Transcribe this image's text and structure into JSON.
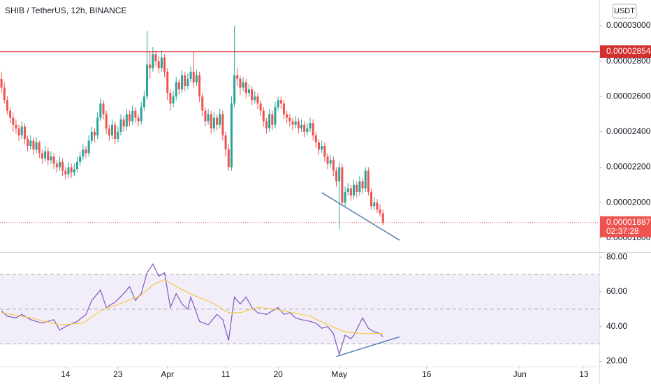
{
  "chart_data": [
    {
      "type": "candlestick",
      "title": "SHIB / TetherUS, 12h, BINANCE",
      "currency": "USDT",
      "xlim": [
        -0.5,
        205.3
      ],
      "ylim": [
        1.724e-05,
        3.146e-05
      ],
      "yticks": [
        {
          "value": 3e-05,
          "label": "0.00003000"
        },
        {
          "value": 2.8e-05,
          "label": "0.00002800"
        },
        {
          "value": 2.6e-05,
          "label": "0.00002600"
        },
        {
          "value": 2.4e-05,
          "label": "0.00002400"
        },
        {
          "value": 2.2e-05,
          "label": "0.00002200"
        },
        {
          "value": 2e-05,
          "label": "0.00002000"
        },
        {
          "value": 1.8e-05,
          "label": "0.00001800"
        }
      ],
      "up_color": "#26a69a",
      "down_color": "#ef5350",
      "ohlc": [
        [
          2.7e-05,
          2.74e-05,
          2.62e-05,
          2.65e-05
        ],
        [
          2.65e-05,
          2.68e-05,
          2.56e-05,
          2.58e-05
        ],
        [
          2.58e-05,
          2.6e-05,
          2.5e-05,
          2.52e-05
        ],
        [
          2.52e-05,
          2.54e-05,
          2.45e-05,
          2.48e-05
        ],
        [
          2.48e-05,
          2.51e-05,
          2.4e-05,
          2.44e-05
        ],
        [
          2.44e-05,
          2.47e-05,
          2.39e-05,
          2.42e-05
        ],
        [
          2.42e-05,
          2.44e-05,
          2.35e-05,
          2.38e-05
        ],
        [
          2.38e-05,
          2.46e-05,
          2.36e-05,
          2.43e-05
        ],
        [
          2.43e-05,
          2.45e-05,
          2.33e-05,
          2.36e-05
        ],
        [
          2.36e-05,
          2.38e-05,
          2.29e-05,
          2.32e-05
        ],
        [
          2.32e-05,
          2.38e-05,
          2.3e-05,
          2.35e-05
        ],
        [
          2.35e-05,
          2.37e-05,
          2.27e-05,
          2.3e-05
        ],
        [
          2.3e-05,
          2.37e-05,
          2.28e-05,
          2.34e-05
        ],
        [
          2.34e-05,
          2.35e-05,
          2.25e-05,
          2.28e-05
        ],
        [
          2.28e-05,
          2.3e-05,
          2.22e-05,
          2.25e-05
        ],
        [
          2.25e-05,
          2.32e-05,
          2.23e-05,
          2.29e-05
        ],
        [
          2.29e-05,
          2.31e-05,
          2.21e-05,
          2.24e-05
        ],
        [
          2.24e-05,
          2.29e-05,
          2.22e-05,
          2.26e-05
        ],
        [
          2.26e-05,
          2.28e-05,
          2.19e-05,
          2.22e-05
        ],
        [
          2.22e-05,
          2.24e-05,
          2.17e-05,
          2.2e-05
        ],
        [
          2.2e-05,
          2.26e-05,
          2.18e-05,
          2.23e-05
        ],
        [
          2.23e-05,
          2.25e-05,
          2.15e-05,
          2.18e-05
        ],
        [
          2.18e-05,
          2.2e-05,
          2.13e-05,
          2.16e-05
        ],
        [
          2.16e-05,
          2.23e-05,
          2.14e-05,
          2.2e-05
        ],
        [
          2.2e-05,
          2.22e-05,
          2.14e-05,
          2.17e-05
        ],
        [
          2.17e-05,
          2.22e-05,
          2.15e-05,
          2.19e-05
        ],
        [
          2.19e-05,
          2.26e-05,
          2.17e-05,
          2.23e-05
        ],
        [
          2.23e-05,
          2.29e-05,
          2.21e-05,
          2.26e-05
        ],
        [
          2.26e-05,
          2.33e-05,
          2.24e-05,
          2.3e-05
        ],
        [
          2.3e-05,
          2.32e-05,
          2.25e-05,
          2.28e-05
        ],
        [
          2.28e-05,
          2.38e-05,
          2.26e-05,
          2.35e-05
        ],
        [
          2.35e-05,
          2.43e-05,
          2.33e-05,
          2.4e-05
        ],
        [
          2.4e-05,
          2.42e-05,
          2.34e-05,
          2.38e-05
        ],
        [
          2.38e-05,
          2.51e-05,
          2.36e-05,
          2.48e-05
        ],
        [
          2.48e-05,
          2.59e-05,
          2.46e-05,
          2.56e-05
        ],
        [
          2.56e-05,
          2.58e-05,
          2.47e-05,
          2.5e-05
        ],
        [
          2.5e-05,
          2.52e-05,
          2.39e-05,
          2.42e-05
        ],
        [
          2.42e-05,
          2.44e-05,
          2.35e-05,
          2.38e-05
        ],
        [
          2.38e-05,
          2.47e-05,
          2.36e-05,
          2.44e-05
        ],
        [
          2.44e-05,
          2.46e-05,
          2.33e-05,
          2.36e-05
        ],
        [
          2.36e-05,
          2.43e-05,
          2.34e-05,
          2.4e-05
        ],
        [
          2.4e-05,
          2.5e-05,
          2.38e-05,
          2.47e-05
        ],
        [
          2.47e-05,
          2.49e-05,
          2.4e-05,
          2.43e-05
        ],
        [
          2.43e-05,
          2.53e-05,
          2.41e-05,
          2.5e-05
        ],
        [
          2.5e-05,
          2.52e-05,
          2.43e-05,
          2.46e-05
        ],
        [
          2.46e-05,
          2.55e-05,
          2.44e-05,
          2.52e-05
        ],
        [
          2.52e-05,
          2.54e-05,
          2.45e-05,
          2.48e-05
        ],
        [
          2.48e-05,
          2.5e-05,
          2.43e-05,
          2.46e-05
        ],
        [
          2.46e-05,
          2.57e-05,
          2.44e-05,
          2.54e-05
        ],
        [
          2.54e-05,
          2.63e-05,
          2.52e-05,
          2.6e-05
        ],
        [
          2.6e-05,
          2.97e-05,
          2.58e-05,
          2.78e-05
        ],
        [
          2.78e-05,
          2.85e-05,
          2.7e-05,
          2.76e-05
        ],
        [
          2.76e-05,
          2.88e-05,
          2.74e-05,
          2.84e-05
        ],
        [
          2.84e-05,
          2.86e-05,
          2.77e-05,
          2.8e-05
        ],
        [
          2.8e-05,
          2.83e-05,
          2.73e-05,
          2.76e-05
        ],
        [
          2.76e-05,
          2.86e-05,
          2.74e-05,
          2.82e-05
        ],
        [
          2.82e-05,
          2.84e-05,
          2.71e-05,
          2.74e-05
        ],
        [
          2.74e-05,
          2.76e-05,
          2.58e-05,
          2.62e-05
        ],
        [
          2.62e-05,
          2.64e-05,
          2.52e-05,
          2.56e-05
        ],
        [
          2.56e-05,
          2.63e-05,
          2.54e-05,
          2.6e-05
        ],
        [
          2.6e-05,
          2.71e-05,
          2.58e-05,
          2.68e-05
        ],
        [
          2.68e-05,
          2.7e-05,
          2.61e-05,
          2.64e-05
        ],
        [
          2.64e-05,
          2.75e-05,
          2.62e-05,
          2.72e-05
        ],
        [
          2.72e-05,
          2.74e-05,
          2.63e-05,
          2.66e-05
        ],
        [
          2.66e-05,
          2.73e-05,
          2.64e-05,
          2.7e-05
        ],
        [
          2.7e-05,
          2.77e-05,
          2.68e-05,
          2.74e-05
        ],
        [
          2.74e-05,
          2.85e-05,
          2.65e-05,
          2.68e-05
        ],
        [
          2.68e-05,
          2.75e-05,
          2.66e-05,
          2.72e-05
        ],
        [
          2.72e-05,
          2.74e-05,
          2.57e-05,
          2.6e-05
        ],
        [
          2.6e-05,
          2.62e-05,
          2.49e-05,
          2.52e-05
        ],
        [
          2.52e-05,
          2.54e-05,
          2.43e-05,
          2.46e-05
        ],
        [
          2.46e-05,
          2.53e-05,
          2.44e-05,
          2.5e-05
        ],
        [
          2.5e-05,
          2.52e-05,
          2.39e-05,
          2.42e-05
        ],
        [
          2.42e-05,
          2.51e-05,
          2.4e-05,
          2.48e-05
        ],
        [
          2.48e-05,
          2.5e-05,
          2.41e-05,
          2.44e-05
        ],
        [
          2.44e-05,
          2.53e-05,
          2.42e-05,
          2.5e-05
        ],
        [
          2.5e-05,
          2.52e-05,
          2.35e-05,
          2.38e-05
        ],
        [
          2.38e-05,
          2.4e-05,
          2.26e-05,
          2.3e-05
        ],
        [
          2.3e-05,
          2.33e-05,
          2.18e-05,
          2.2e-05
        ],
        [
          2.2e-05,
          2.6e-05,
          2.18e-05,
          2.56e-05
        ],
        [
          2.56e-05,
          3e-05,
          2.54e-05,
          2.72e-05
        ],
        [
          2.72e-05,
          2.76e-05,
          2.66e-05,
          2.7e-05
        ],
        [
          2.7e-05,
          2.72e-05,
          2.61e-05,
          2.65e-05
        ],
        [
          2.65e-05,
          2.71e-05,
          2.63e-05,
          2.68e-05
        ],
        [
          2.68e-05,
          2.7e-05,
          2.59e-05,
          2.62e-05
        ],
        [
          2.62e-05,
          2.67e-05,
          2.6e-05,
          2.64e-05
        ],
        [
          2.64e-05,
          2.66e-05,
          2.55e-05,
          2.58e-05
        ],
        [
          2.58e-05,
          2.63e-05,
          2.56e-05,
          2.6e-05
        ],
        [
          2.6e-05,
          2.62e-05,
          2.53e-05,
          2.56e-05
        ],
        [
          2.56e-05,
          2.58e-05,
          2.49e-05,
          2.52e-05
        ],
        [
          2.52e-05,
          2.54e-05,
          2.43e-05,
          2.46e-05
        ],
        [
          2.46e-05,
          2.48e-05,
          2.39e-05,
          2.42e-05
        ],
        [
          2.42e-05,
          2.53e-05,
          2.4e-05,
          2.5e-05
        ],
        [
          2.5e-05,
          2.52e-05,
          2.41e-05,
          2.44e-05
        ],
        [
          2.44e-05,
          2.57e-05,
          2.42e-05,
          2.54e-05
        ],
        [
          2.54e-05,
          2.6e-05,
          2.52e-05,
          2.58e-05
        ],
        [
          2.58e-05,
          2.6e-05,
          2.53e-05,
          2.56e-05
        ],
        [
          2.56e-05,
          2.58e-05,
          2.47e-05,
          2.5e-05
        ],
        [
          2.5e-05,
          2.52e-05,
          2.45e-05,
          2.48e-05
        ],
        [
          2.48e-05,
          2.5e-05,
          2.43e-05,
          2.46e-05
        ],
        [
          2.46e-05,
          2.48e-05,
          2.41e-05,
          2.44e-05
        ],
        [
          2.44e-05,
          2.49e-05,
          2.42e-05,
          2.46e-05
        ],
        [
          2.46e-05,
          2.48e-05,
          2.39e-05,
          2.42e-05
        ],
        [
          2.42e-05,
          2.47e-05,
          2.4e-05,
          2.44e-05
        ],
        [
          2.44e-05,
          2.46e-05,
          2.37e-05,
          2.4e-05
        ],
        [
          2.4e-05,
          2.45e-05,
          2.38e-05,
          2.42e-05
        ],
        [
          2.42e-05,
          2.48e-05,
          2.4e-05,
          2.45e-05
        ],
        [
          2.45e-05,
          2.47e-05,
          2.35e-05,
          2.38e-05
        ],
        [
          2.38e-05,
          2.4e-05,
          2.31e-05,
          2.34e-05
        ],
        [
          2.34e-05,
          2.36e-05,
          2.27e-05,
          2.3e-05
        ],
        [
          2.3e-05,
          2.35e-05,
          2.28e-05,
          2.32e-05
        ],
        [
          2.32e-05,
          2.34e-05,
          2.23e-05,
          2.26e-05
        ],
        [
          2.26e-05,
          2.28e-05,
          2.19e-05,
          2.22e-05
        ],
        [
          2.22e-05,
          2.27e-05,
          2.2e-05,
          2.24e-05
        ],
        [
          2.24e-05,
          2.26e-05,
          2.15e-05,
          2.18e-05
        ],
        [
          2.18e-05,
          2.2e-05,
          2.09e-05,
          2.12e-05
        ],
        [
          2.12e-05,
          2.23e-05,
          1.85e-05,
          2.2e-05
        ],
        [
          2.2e-05,
          2.22e-05,
          1.98e-05,
          2e-05
        ],
        [
          2e-05,
          2.09e-05,
          1.98e-05,
          2.06e-05
        ],
        [
          2.06e-05,
          2.11e-05,
          2.04e-05,
          2.08e-05
        ],
        [
          2.08e-05,
          2.1e-05,
          2.01e-05,
          2.04e-05
        ],
        [
          2.04e-05,
          2.13e-05,
          2.02e-05,
          2.1e-05
        ],
        [
          2.1e-05,
          2.12e-05,
          2.03e-05,
          2.06e-05
        ],
        [
          2.06e-05,
          2.15e-05,
          2.04e-05,
          2.12e-05
        ],
        [
          2.12e-05,
          2.14e-05,
          2.05e-05,
          2.08e-05
        ],
        [
          2.08e-05,
          2.2e-05,
          2.06e-05,
          2.18e-05
        ],
        [
          2.18e-05,
          2.2e-05,
          2.04e-05,
          2.06e-05
        ],
        [
          2.06e-05,
          2.08e-05,
          1.96e-05,
          1.98e-05
        ],
        [
          1.98e-05,
          2.03e-05,
          1.96e-05,
          2e-05
        ],
        [
          2e-05,
          2.02e-05,
          1.94e-05,
          1.96e-05
        ],
        [
          1.96e-05,
          1.99e-05,
          1.92e-05,
          1.94e-05
        ],
        [
          1.94e-05,
          1.96e-05,
          1.87e-05,
          1.887e-05
        ]
      ],
      "price_line": {
        "value": 2.854e-05,
        "label": "0.00002854",
        "color": "#d32f2f"
      },
      "last_price": {
        "value": 1.887e-05,
        "label": "0.00001887",
        "countdown": "02:37:28",
        "color": "#ef5350"
      },
      "trendline": {
        "x": [
          110,
          136.7
        ],
        "y": [
          2.056e-05,
          1.787e-05
        ],
        "color": "#5b7fb5"
      }
    },
    {
      "type": "line",
      "xlim": [
        -0.5,
        205.3
      ],
      "ylim": [
        17,
        82.5
      ],
      "xticks": [
        {
          "value": 22,
          "label": "14"
        },
        {
          "value": 40,
          "label": "23"
        },
        {
          "value": 57,
          "label": "Apr"
        },
        {
          "value": 77,
          "label": "11"
        },
        {
          "value": 95,
          "label": "20"
        },
        {
          "value": 116,
          "label": "May"
        },
        {
          "value": 146,
          "label": "16"
        },
        {
          "value": 178,
          "label": "Jun"
        },
        {
          "value": 200,
          "label": "13"
        }
      ],
      "yticks": [
        {
          "value": 80,
          "label": "80.00"
        },
        {
          "value": 60,
          "label": "60.00"
        },
        {
          "value": 40,
          "label": "40.00"
        },
        {
          "value": 20,
          "label": "20.00"
        }
      ],
      "bands": {
        "upper": 70,
        "middle": 50,
        "lower": 30,
        "fill": "#7e57c2"
      },
      "series": [
        {
          "color": "#7e57c2",
          "x": [
            0,
            2,
            5,
            7,
            10,
            12,
            14,
            18,
            20,
            22,
            26,
            29,
            31,
            34,
            36,
            39,
            42,
            44,
            46,
            48,
            50,
            52,
            54,
            56,
            58,
            60,
            62,
            64,
            65,
            68,
            71,
            74,
            76,
            78,
            80,
            82,
            84,
            86,
            88,
            91,
            93,
            95,
            97,
            99,
            101,
            103,
            106,
            108,
            110,
            112,
            114,
            116,
            118,
            120,
            121,
            124,
            126,
            128,
            130,
            131
          ],
          "values": [
            49,
            46,
            45,
            47,
            44,
            43,
            42,
            44,
            38,
            40,
            43,
            47,
            55,
            61,
            51,
            54,
            59,
            63,
            55,
            59,
            71,
            76,
            69,
            71,
            51,
            59,
            53,
            50,
            57,
            43,
            41,
            47,
            44,
            32,
            57,
            53,
            57,
            51,
            48,
            47,
            49,
            51,
            47,
            48,
            45,
            44,
            43,
            42,
            39,
            40,
            36,
            24,
            35,
            33,
            35,
            45,
            39,
            37,
            36,
            34
          ]
        },
        {
          "color": "#f2c94c",
          "x": [
            0,
            10,
            20,
            28,
            34,
            42,
            48,
            52,
            56,
            60,
            66,
            72,
            78,
            82,
            88,
            94,
            100,
            106,
            112,
            118,
            124,
            131
          ],
          "values": [
            48,
            45,
            41,
            42,
            49,
            54,
            58,
            64,
            67,
            63,
            58,
            54,
            48,
            48,
            51,
            50,
            48,
            46,
            41,
            37,
            36,
            36
          ]
        }
      ],
      "trendline": {
        "x": [
          115,
          136.7
        ],
        "y": [
          22.8,
          34.1
        ],
        "color": "#5b7fb5"
      }
    }
  ]
}
